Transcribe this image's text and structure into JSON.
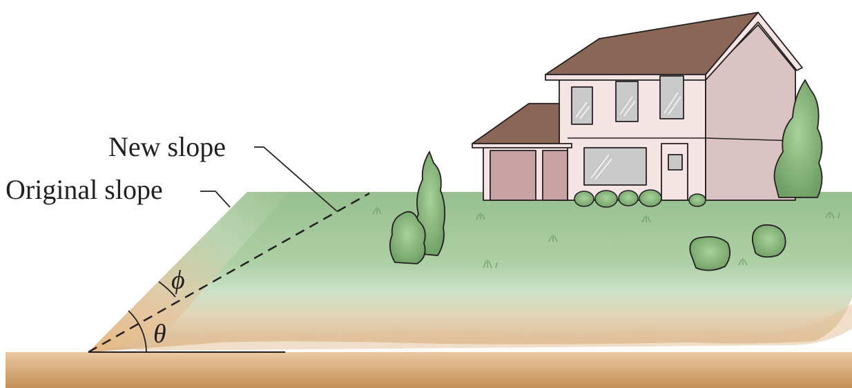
{
  "labels": {
    "new_slope": "New slope",
    "original_slope": "Original slope",
    "phi": "ϕ",
    "theta": "θ"
  },
  "colors": {
    "soil_top": "#ebc9a1",
    "soil_bottom": "#c48f57",
    "grass": "#97bf8e",
    "grass_light": "#cbe2c8",
    "house_wall": "#f4e4e4",
    "house_wall_shade": "#dcc3c3",
    "roof": "#8a6656",
    "garage_door": "#c9a2a4",
    "window_glass": "#c9c9c9",
    "shrub": "#8bbb7d",
    "line": "#231f20"
  }
}
